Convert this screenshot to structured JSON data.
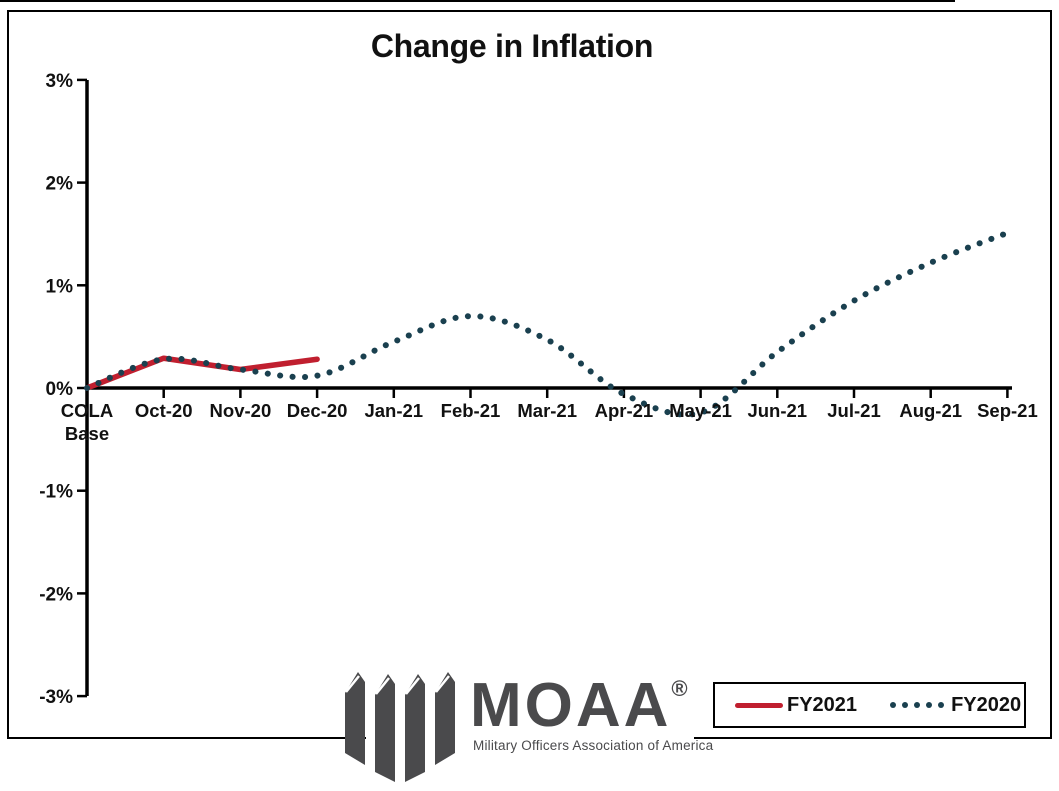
{
  "title": "Change in Inflation",
  "colors": {
    "fy2021_red": "#C01F2F",
    "fy2020_teal": "#1A404F",
    "axis_black": "#000000",
    "logo_gray": "#4A4A4C"
  },
  "legend": {
    "items": [
      {
        "label": "FY2021",
        "color": "#C01F2F",
        "style": "solid"
      },
      {
        "label": "FY2020",
        "color": "#1A404F",
        "style": "dotted"
      }
    ]
  },
  "logo": {
    "wordmark": "MOAA",
    "registered": "®",
    "tagline": "Military Officers Association of America",
    "color": "#4A4A4C"
  },
  "chart_data": {
    "type": "line",
    "title": "Change in Inflation",
    "categories": [
      "COLA Base",
      "Oct-20",
      "Nov-20",
      "Dec-20",
      "Jan-21",
      "Feb-21",
      "Mar-21",
      "Apr-21",
      "May-21",
      "Jun-21",
      "Jul-21",
      "Aug-21",
      "Sep-21"
    ],
    "series": [
      {
        "name": "FY2021",
        "style": "solid",
        "color": "#C01F2F",
        "values": [
          0,
          0.29,
          0.18,
          0.28
        ]
      },
      {
        "name": "FY2020",
        "style": "dotted",
        "color": "#1A404F",
        "values": [
          0,
          0.28,
          0.18,
          0.12,
          0.45,
          0.7,
          0.47,
          -0.06,
          -0.24,
          0.35,
          0.85,
          1.22,
          1.51
        ]
      }
    ],
    "xlabel": "",
    "ylabel": "",
    "y_ticks": [
      "3%",
      "2%",
      "1%",
      "0%",
      "-1%",
      "-2%",
      "-3%"
    ],
    "y_tick_values": [
      3,
      2,
      1,
      0,
      -1,
      -2,
      -3
    ],
    "ylim": [
      -3,
      3
    ],
    "grid": false,
    "legend_position": "bottom-right"
  }
}
